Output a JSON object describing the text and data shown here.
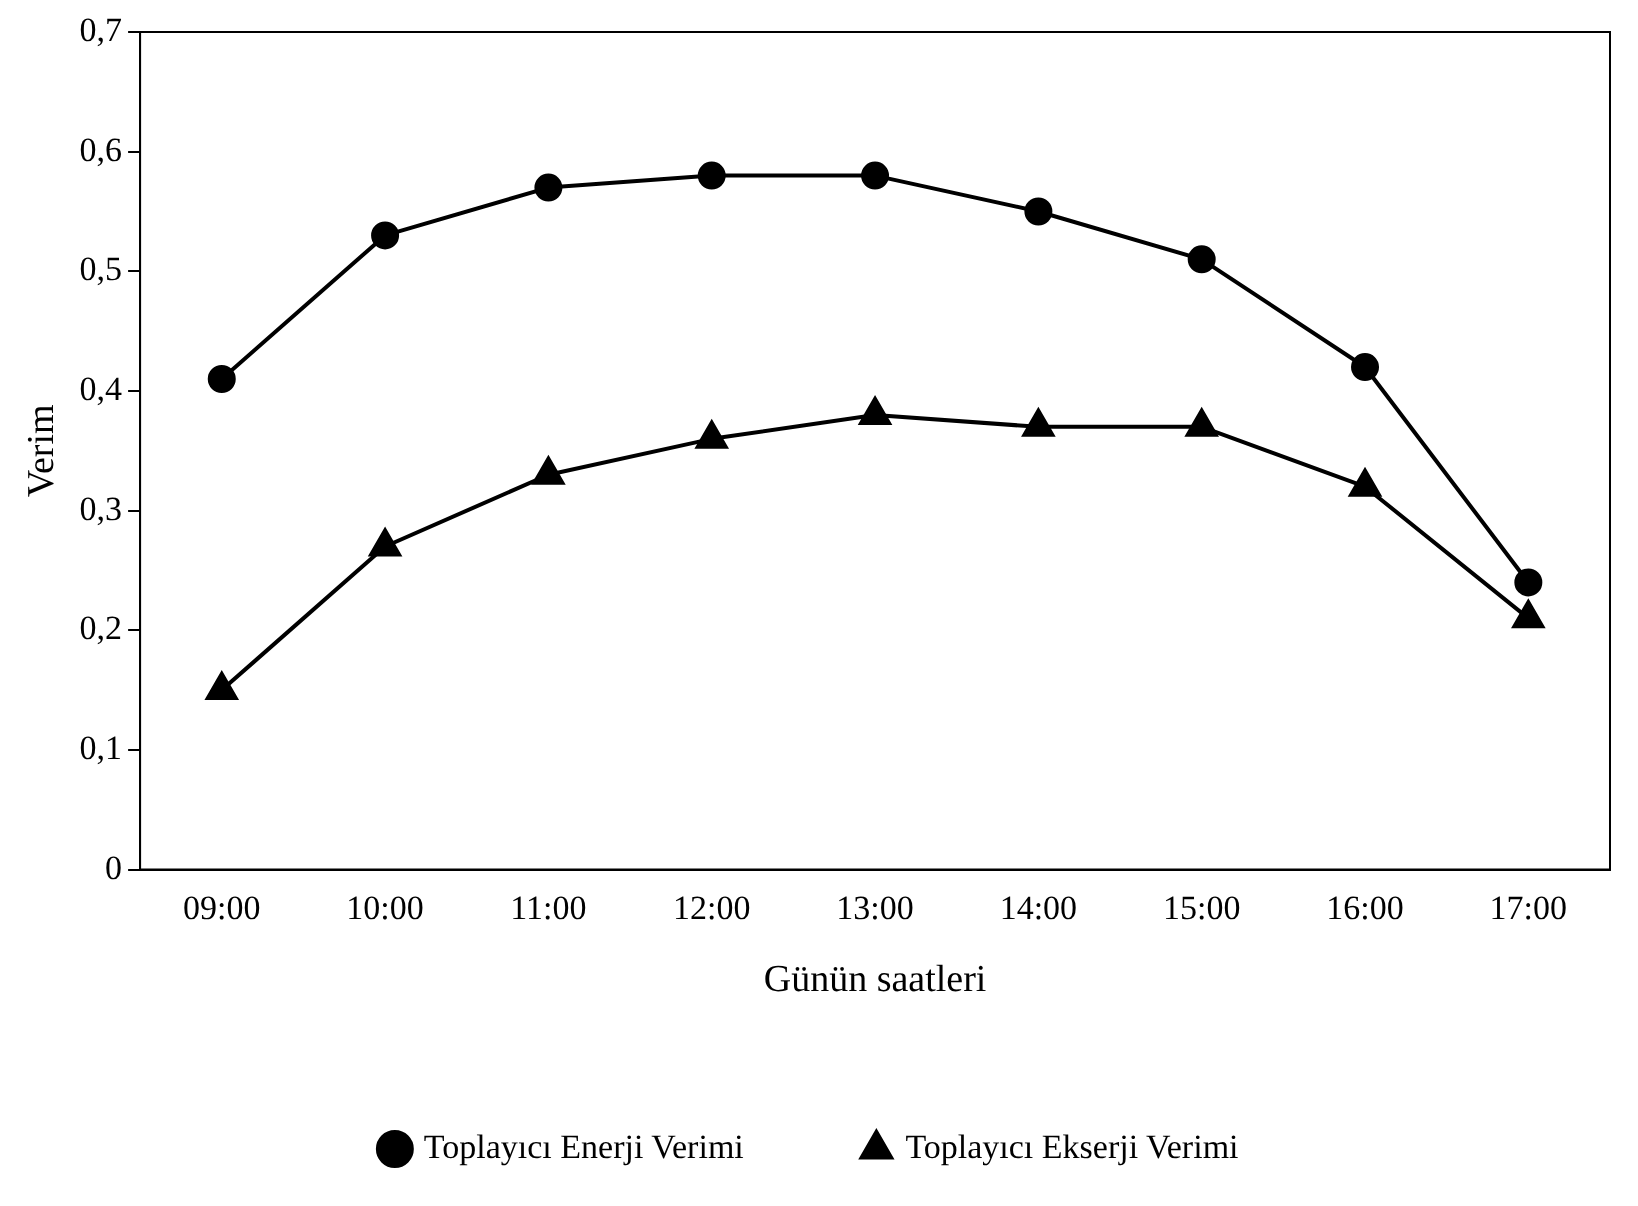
{
  "chart_data": {
    "type": "line",
    "xlabel": "Günün saatleri",
    "ylabel": "Verim",
    "categories": [
      "09:00",
      "10:00",
      "11:00",
      "12:00",
      "13:00",
      "14:00",
      "15:00",
      "16:00",
      "17:00"
    ],
    "series": [
      {
        "name": "Toplayıcı Enerji Verimi",
        "color": "#000000",
        "marker": "circle",
        "values": [
          0.41,
          0.53,
          0.57,
          0.58,
          0.58,
          0.55,
          0.51,
          0.42,
          0.24
        ]
      },
      {
        "name": "Toplayıcı Ekserji Verimi",
        "color": "#000000",
        "marker": "triangle",
        "values": [
          0.15,
          0.27,
          0.33,
          0.36,
          0.38,
          0.37,
          0.37,
          0.32,
          0.21
        ]
      }
    ],
    "ylim": [
      0,
      0.7
    ],
    "yticks": [
      {
        "value": 0,
        "label": "0"
      },
      {
        "value": 0.1,
        "label": "0,1"
      },
      {
        "value": 0.2,
        "label": "0,2"
      },
      {
        "value": 0.3,
        "label": "0,3"
      },
      {
        "value": 0.4,
        "label": "0,4"
      },
      {
        "value": 0.5,
        "label": "0,5"
      },
      {
        "value": 0.6,
        "label": "0,6"
      },
      {
        "value": 0.7,
        "label": "0,7"
      }
    ],
    "grid": false,
    "legend": "bottom",
    "line_style": "solid"
  }
}
